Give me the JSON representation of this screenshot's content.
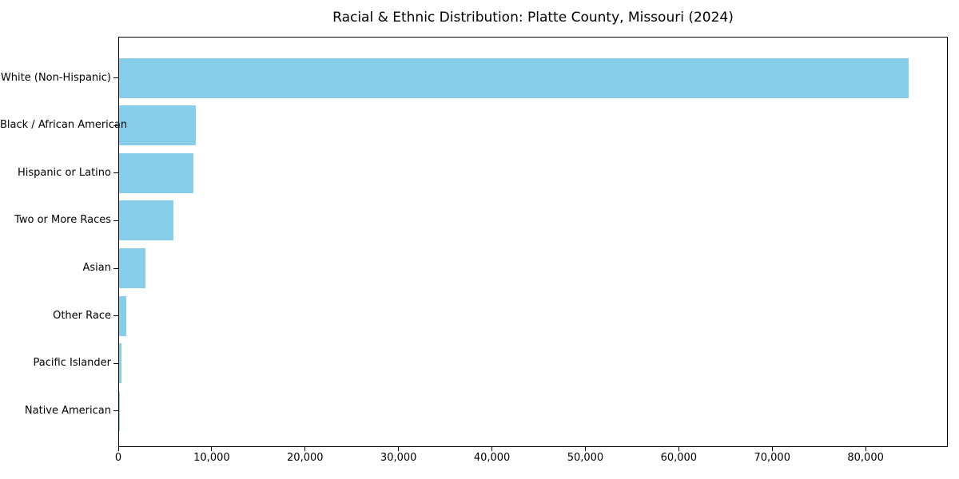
{
  "title": "Racial & Ethnic Distribution: Platte County, Missouri (2024)",
  "chart_data": {
    "type": "bar",
    "orientation": "horizontal",
    "title": "Racial & Ethnic Distribution: Platte County, Missouri (2024)",
    "xlabel": "",
    "ylabel": "",
    "categories": [
      "White (Non-Hispanic)",
      "Black / African American",
      "Hispanic or Latino",
      "Two or More Races",
      "Asian",
      "Other Race",
      "Pacific Islander",
      "Native American"
    ],
    "values": [
      84550,
      8200,
      7950,
      5850,
      2820,
      760,
      280,
      90
    ],
    "xlim": [
      0,
      88800
    ],
    "x_ticks": [
      0,
      10000,
      20000,
      30000,
      40000,
      50000,
      60000,
      70000,
      80000
    ],
    "x_tick_labels": [
      "0",
      "10,000",
      "20,000",
      "30,000",
      "40,000",
      "50,000",
      "60,000",
      "70,000",
      "80,000"
    ],
    "bar_color": "#87CEEB",
    "spine_color": "#000000",
    "grid": false,
    "legend": null
  }
}
